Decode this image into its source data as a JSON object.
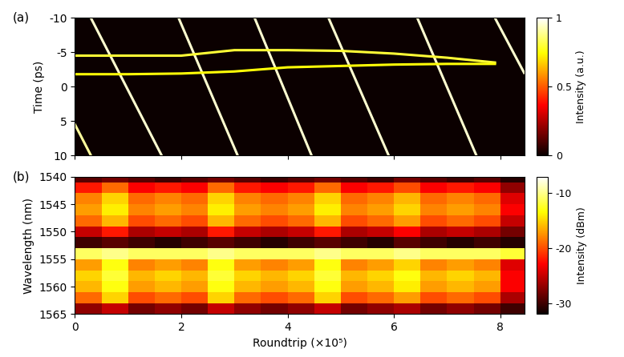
{
  "chart_data": [
    {
      "type": "traces",
      "title": "(a)",
      "y_label": "Time (ps)",
      "tick_labels": "y",
      "xlim": [
        0,
        8.45
      ],
      "xticks": [
        0,
        2,
        4,
        6,
        8
      ],
      "ylim": [
        10,
        -10
      ],
      "yticks": [
        -10,
        -5,
        0,
        5,
        10
      ],
      "colorbar": {
        "label": "Intensity (a.u.)",
        "range": [
          0,
          1
        ],
        "ticks": [
          0,
          0.5,
          1
        ]
      },
      "series": [
        {
          "x": [
            0,
            0.3
          ],
          "values": [
            5.5,
            10
          ],
          "intensity": 0.9
        },
        {
          "x": [
            0.3,
            1.63
          ],
          "values": [
            -10,
            10
          ],
          "intensity": 0.95
        },
        {
          "x": [
            1.95,
            3.06
          ],
          "values": [
            -10,
            10
          ],
          "intensity": 0.95
        },
        {
          "x": [
            3.38,
            4.45
          ],
          "values": [
            -10,
            10
          ],
          "intensity": 0.95
        },
        {
          "x": [
            4.77,
            5.9
          ],
          "values": [
            -10,
            10
          ],
          "intensity": 0.95
        },
        {
          "x": [
            6.44,
            7.55
          ],
          "values": [
            -10,
            10
          ],
          "intensity": 0.95
        },
        {
          "x": [
            7.9,
            8.45
          ],
          "values": [
            -10,
            -2
          ],
          "intensity": 0.95
        },
        {
          "x": [
            0,
            1,
            2,
            3,
            4,
            5,
            6,
            7,
            7.9
          ],
          "values": [
            -4.5,
            -4.5,
            -4.5,
            -5.3,
            -5.3,
            -5.2,
            -4.8,
            -4.2,
            -3.5
          ],
          "intensity": 0.8
        },
        {
          "x": [
            0,
            1,
            2,
            3,
            4,
            5,
            6,
            7,
            7.9
          ],
          "values": [
            -1.8,
            -1.8,
            -1.9,
            -2.2,
            -2.8,
            -3.0,
            -3.2,
            -3.3,
            -3.3
          ],
          "intensity": 0.75
        }
      ]
    },
    {
      "type": "heatmap",
      "title": "(b)",
      "x_label": "Roundtrip (×10⁵)",
      "y_label": "Wavelength (nm)",
      "xlim": [
        0,
        8.45
      ],
      "xticks": [
        0,
        2,
        4,
        6,
        8
      ],
      "ylim": [
        1565,
        1540
      ],
      "yticks": [
        1540,
        1545,
        1550,
        1555,
        1560,
        1565
      ],
      "colorbar": {
        "label": "Intensity (dBm)",
        "range": [
          -32,
          -7
        ],
        "ticks": [
          -10,
          -20,
          -30
        ]
      },
      "x": [
        0.25,
        0.75,
        1.25,
        1.75,
        2.25,
        2.75,
        3.25,
        3.75,
        4.25,
        4.75,
        5.25,
        5.75,
        6.25,
        6.75,
        7.25,
        7.75,
        8.25
      ],
      "y": [
        1540,
        1542,
        1544,
        1546,
        1548,
        1550,
        1552,
        1554,
        1556,
        1558,
        1560,
        1562,
        1564
      ],
      "cells": [
        [
          -29,
          -28,
          -29,
          -30,
          -29,
          -28,
          -29,
          -30,
          -29,
          -28,
          -29,
          -30,
          -28,
          -29,
          -30,
          -29,
          -31
        ],
        [
          -22,
          -19,
          -23,
          -22,
          -23,
          -19,
          -22,
          -23,
          -22,
          -19,
          -23,
          -22,
          -20,
          -23,
          -22,
          -23,
          -27
        ],
        [
          -18,
          -15,
          -19,
          -18,
          -19,
          -15,
          -18,
          -19,
          -18,
          -15,
          -19,
          -18,
          -16,
          -19,
          -18,
          -19,
          -24
        ],
        [
          -17,
          -14,
          -18,
          -17,
          -18,
          -14,
          -17,
          -18,
          -17,
          -14,
          -18,
          -17,
          -15,
          -18,
          -17,
          -18,
          -23
        ],
        [
          -19,
          -16,
          -20,
          -19,
          -20,
          -16,
          -19,
          -20,
          -19,
          -16,
          -20,
          -19,
          -17,
          -20,
          -19,
          -20,
          -25
        ],
        [
          -25,
          -22,
          -26,
          -25,
          -26,
          -22,
          -25,
          -26,
          -25,
          -22,
          -26,
          -25,
          -23,
          -26,
          -25,
          -26,
          -28
        ],
        [
          -30,
          -29,
          -30,
          -31,
          -30,
          -29,
          -30,
          -31,
          -30,
          -29,
          -30,
          -31,
          -29,
          -30,
          -31,
          -30,
          -31
        ],
        [
          -11,
          -10,
          -11,
          -11,
          -11,
          -10,
          -11,
          -11,
          -11,
          -10,
          -11,
          -11,
          -10,
          -11,
          -11,
          -11,
          -12
        ],
        [
          -17,
          -13,
          -18,
          -17,
          -18,
          -13,
          -17,
          -18,
          -17,
          -13,
          -18,
          -17,
          -15,
          -18,
          -17,
          -18,
          -24
        ],
        [
          -15,
          -12,
          -16,
          -15,
          -16,
          -12,
          -15,
          -16,
          -15,
          -12,
          -16,
          -15,
          -13,
          -16,
          -15,
          -16,
          -23
        ],
        [
          -16,
          -13,
          -17,
          -16,
          -17,
          -13,
          -16,
          -17,
          -16,
          -13,
          -17,
          -16,
          -14,
          -17,
          -16,
          -17,
          -23
        ],
        [
          -19,
          -15,
          -20,
          -19,
          -20,
          -15,
          -19,
          -20,
          -19,
          -15,
          -20,
          -19,
          -17,
          -20,
          -19,
          -20,
          -26
        ],
        [
          -27,
          -25,
          -28,
          -27,
          -28,
          -25,
          -27,
          -28,
          -27,
          -25,
          -28,
          -27,
          -26,
          -28,
          -27,
          -28,
          -30
        ]
      ]
    }
  ]
}
